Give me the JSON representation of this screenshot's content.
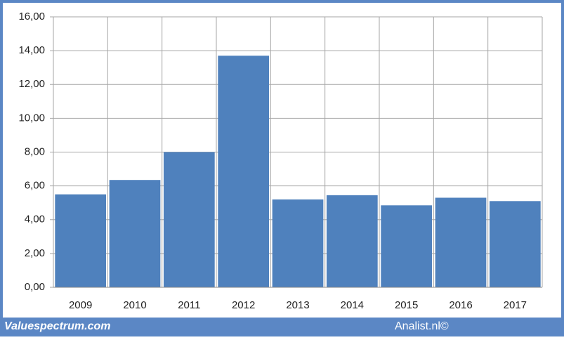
{
  "chart_data": {
    "type": "bar",
    "categories": [
      "2009",
      "2010",
      "2011",
      "2012",
      "2013",
      "2014",
      "2015",
      "2016",
      "2017"
    ],
    "values": [
      5.5,
      6.35,
      8.0,
      13.7,
      5.2,
      5.45,
      4.85,
      5.3,
      5.1
    ],
    "color": "#4f81bd",
    "ylim": [
      0,
      16
    ],
    "yticks": [
      {
        "value": 0,
        "label": "0,00"
      },
      {
        "value": 2,
        "label": "2,00"
      },
      {
        "value": 4,
        "label": "4,00"
      },
      {
        "value": 6,
        "label": "6,00"
      },
      {
        "value": 8,
        "label": "8,00"
      },
      {
        "value": 10,
        "label": "10,00"
      },
      {
        "value": 12,
        "label": "12,00"
      },
      {
        "value": 14,
        "label": "14,00"
      },
      {
        "value": 16,
        "label": "16,00"
      }
    ],
    "grid": true,
    "footer_left": "Valuespectrum.com",
    "footer_right": "Analist.nl©"
  }
}
